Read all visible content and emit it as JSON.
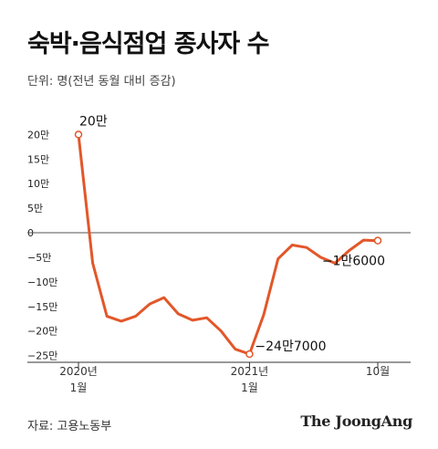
{
  "header": {
    "title": "숙박·음식점업 종사자 수",
    "unit": "단위: 명(전년 동월 대비 증감)"
  },
  "footer": {
    "source": "자료: 고용노동부",
    "brand": "The JoongAng"
  },
  "colors": {
    "line": "#e2572a",
    "zero_line": "#555555",
    "axis": "#333333",
    "marker_fill": "#ffffff"
  },
  "chart_data": {
    "type": "line",
    "title": "숙박·음식점업 종사자 수",
    "ylabel": "단위: 명(전년 동월 대비 증감)",
    "x": [
      "2020-01",
      "2020-02",
      "2020-03",
      "2020-04",
      "2020-05",
      "2020-06",
      "2020-07",
      "2020-08",
      "2020-09",
      "2020-10",
      "2020-11",
      "2020-12",
      "2021-01",
      "2021-02",
      "2021-03",
      "2021-04",
      "2021-05",
      "2021-06",
      "2021-07",
      "2021-08",
      "2021-09",
      "2021-10"
    ],
    "series": [
      {
        "values": [
          200000,
          -62000,
          -170000,
          -180000,
          -170000,
          -145000,
          -132000,
          -165000,
          -178000,
          -173000,
          -200000,
          -237000,
          -247000,
          -167000,
          -53000,
          -25000,
          -30000,
          -50000,
          -62000,
          -36000,
          -15000,
          -16000
        ]
      }
    ],
    "ylim": [
      -260000,
      210000
    ],
    "yticks": [
      {
        "value": 200000,
        "label": "20만"
      },
      {
        "value": 150000,
        "label": "15만"
      },
      {
        "value": 100000,
        "label": "10만"
      },
      {
        "value": 50000,
        "label": "5만"
      },
      {
        "value": 0,
        "label": "0"
      },
      {
        "value": -50000,
        "label": "−5만"
      },
      {
        "value": -100000,
        "label": "−10만"
      },
      {
        "value": -150000,
        "label": "−15만"
      },
      {
        "value": -200000,
        "label": "−20만"
      },
      {
        "value": -250000,
        "label": "−25만"
      }
    ],
    "xticks": [
      {
        "index": 0,
        "lines": [
          "2020년",
          "1월"
        ]
      },
      {
        "index": 12,
        "lines": [
          "2021년",
          "1월"
        ]
      },
      {
        "index": 21,
        "lines": [
          "10월"
        ]
      }
    ],
    "annotations": [
      {
        "index": 0,
        "text": "20만",
        "position": "above"
      },
      {
        "index": 12,
        "text": "−24만7000",
        "position": "right"
      },
      {
        "index": 21,
        "text": "−1만6000",
        "position": "below"
      }
    ],
    "markers": [
      0,
      12,
      21
    ],
    "grid": false,
    "legend": "none"
  }
}
